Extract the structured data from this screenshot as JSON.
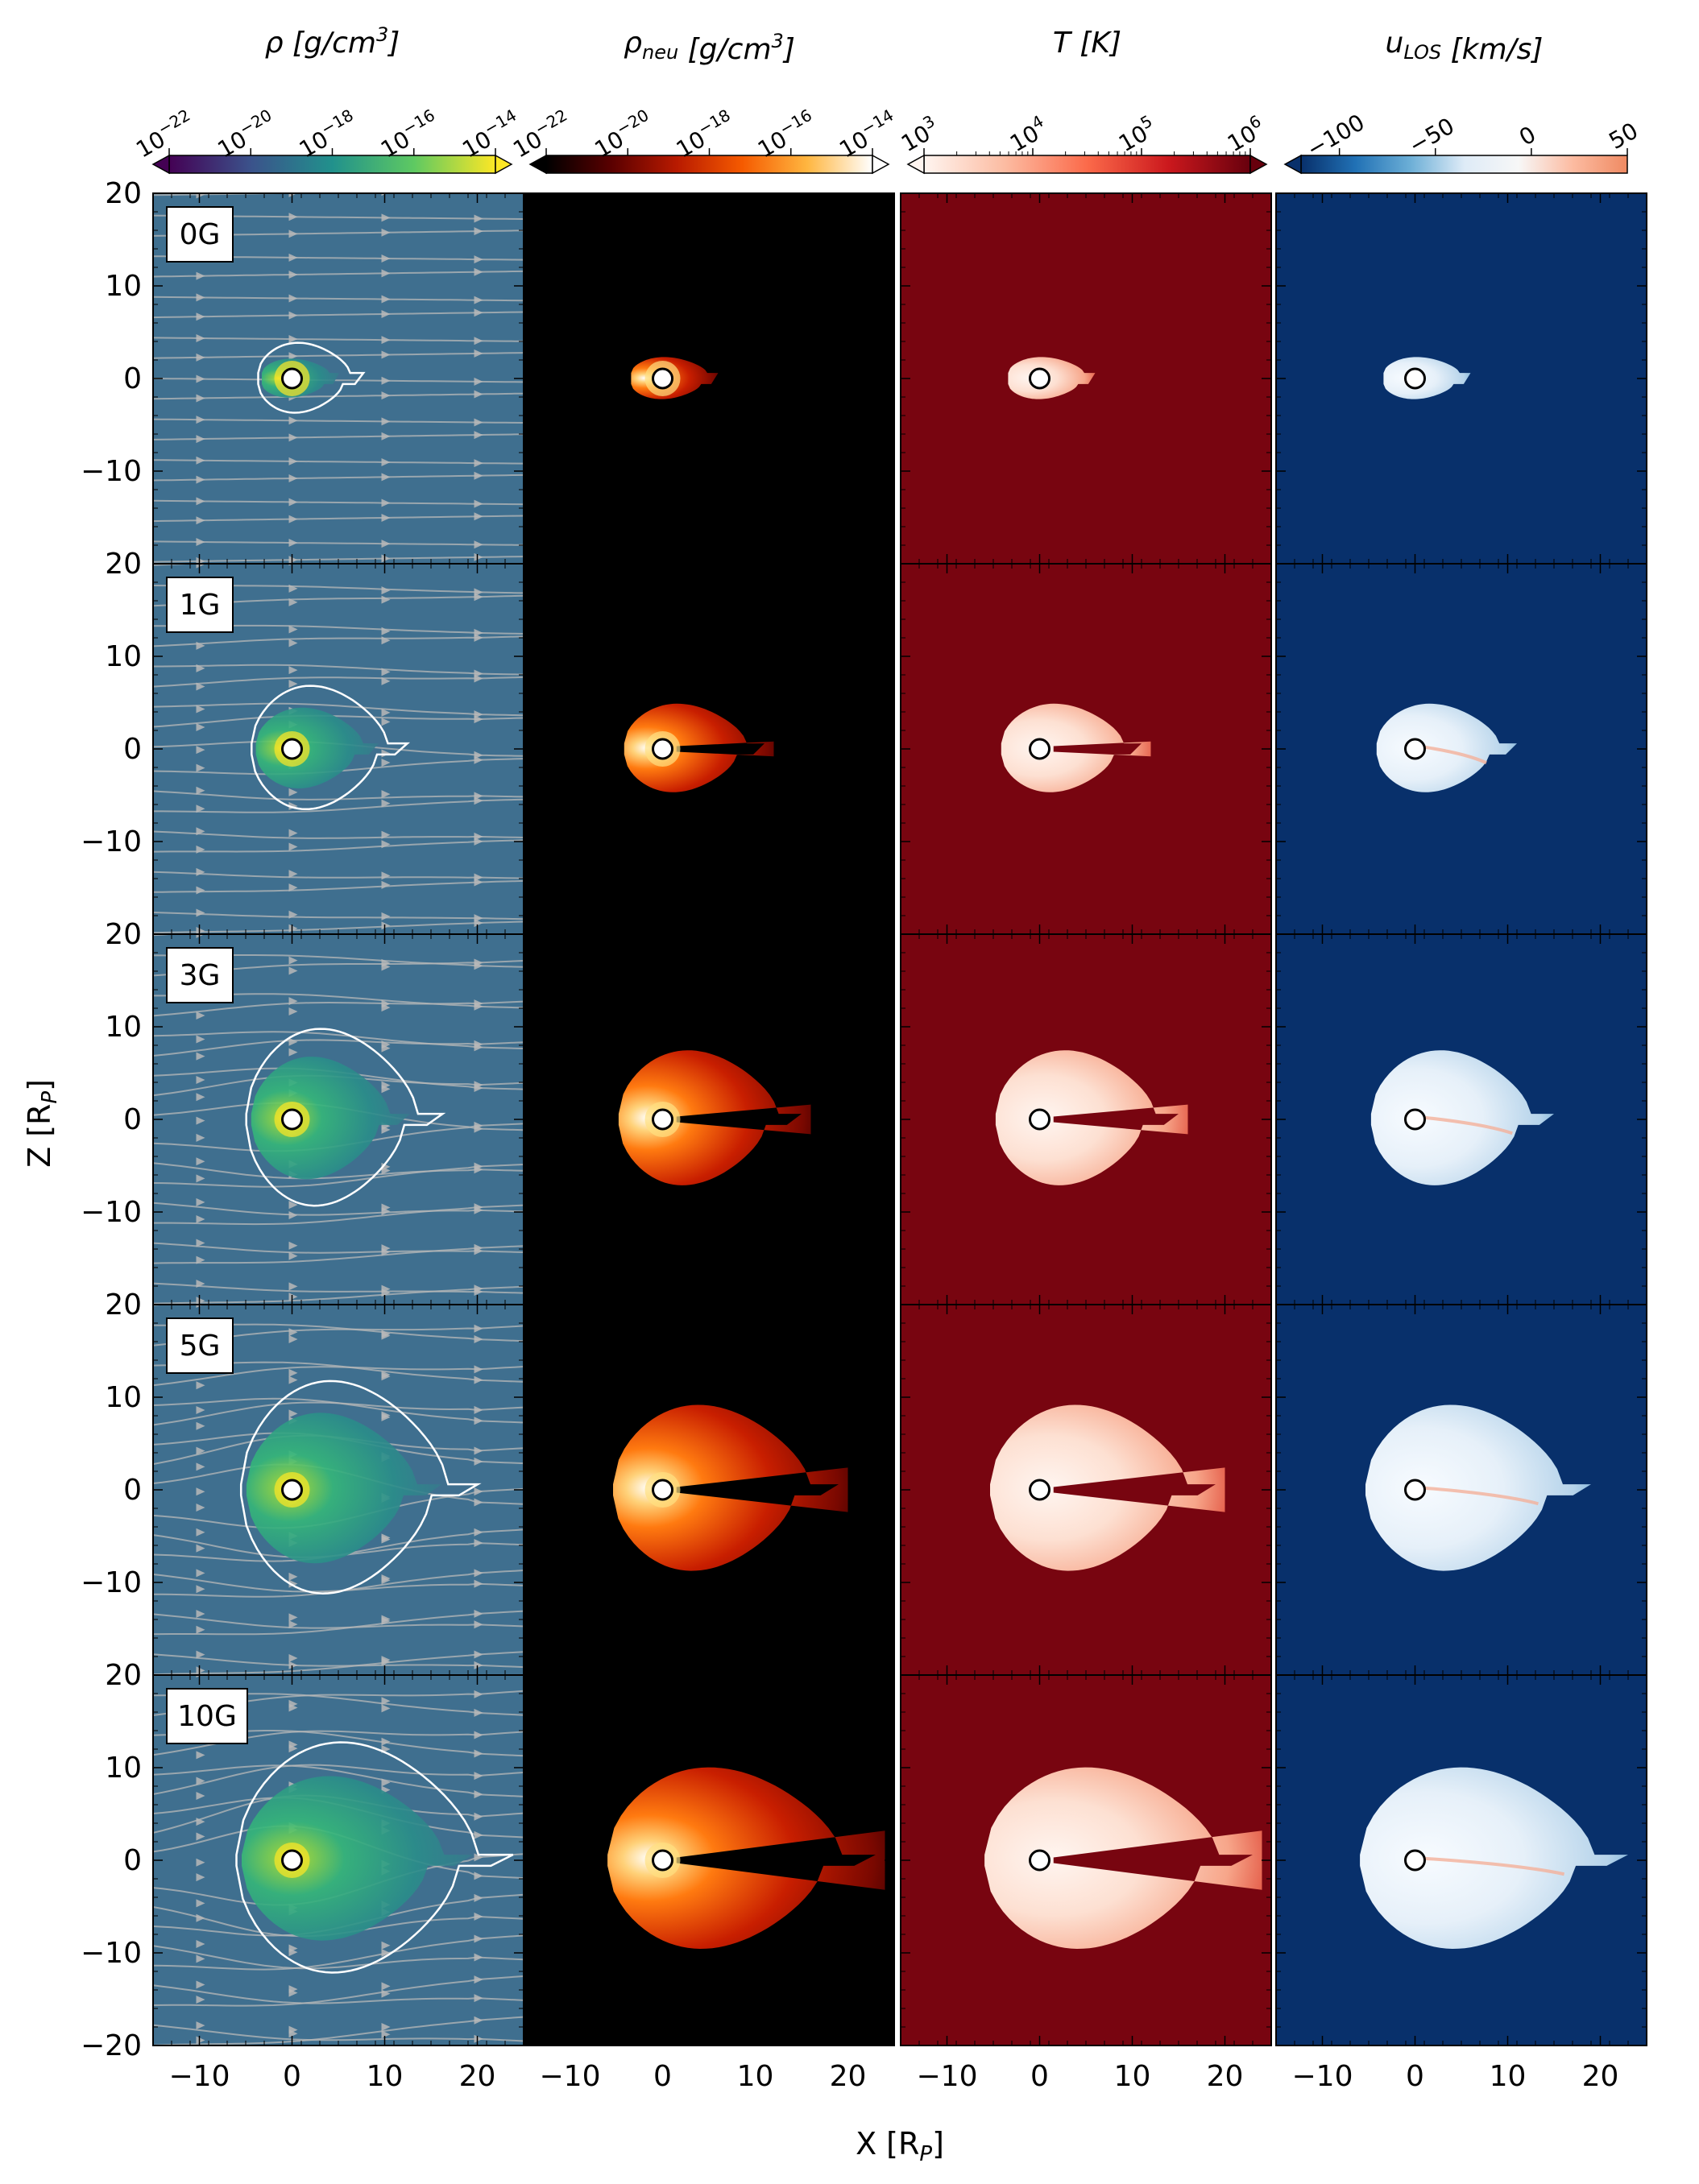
{
  "figure": {
    "xlabel": "X [R",
    "xlabel_sub": "P",
    "xlabel_close": "]",
    "ylabel": "Z [R",
    "ylabel_sub": "P",
    "ylabel_close": "]"
  },
  "colorbars": [
    {
      "name": "rho",
      "label_main": "ρ",
      "label_sub": "",
      "label_unit": " [g/cm",
      "label_sup": "3",
      "label_close": "]",
      "scale": "log",
      "tick_bases": [
        "10",
        "10",
        "10",
        "10",
        "10"
      ],
      "tick_exps": [
        "−22",
        "−20",
        "−18",
        "−16",
        "−14"
      ],
      "tick_values": [
        -22,
        -20,
        -18,
        -16,
        -14
      ],
      "range": [
        -22,
        -14
      ],
      "extend": "both",
      "cmap": [
        "#440154",
        "#3b528b",
        "#21918c",
        "#5ec962",
        "#fde725"
      ]
    },
    {
      "name": "rho_neu",
      "label_main": "ρ",
      "label_sub": "neu",
      "label_unit": " [g/cm",
      "label_sup": "3",
      "label_close": "]",
      "scale": "log",
      "tick_bases": [
        "10",
        "10",
        "10",
        "10",
        "10"
      ],
      "tick_exps": [
        "−22",
        "−20",
        "−18",
        "−16",
        "−14"
      ],
      "tick_values": [
        -22,
        -20,
        -18,
        -16,
        -14
      ],
      "range": [
        -22,
        -14
      ],
      "extend": "both",
      "cmap": [
        "#000000",
        "#5a0000",
        "#b81a00",
        "#f55a00",
        "#ffb640",
        "#ffffff"
      ]
    },
    {
      "name": "temperature",
      "label_main": "T",
      "label_sub": "",
      "label_unit": " [K",
      "label_sup": "",
      "label_close": "]",
      "scale": "log",
      "tick_bases": [
        "10",
        "10",
        "10",
        "10"
      ],
      "tick_exps": [
        "3",
        "4",
        "5",
        "6"
      ],
      "tick_values": [
        3,
        4,
        5,
        6
      ],
      "range": [
        3,
        6
      ],
      "extend": "both",
      "cmap": [
        "#fff5f0",
        "#fcbba1",
        "#fb6a4a",
        "#cb181d",
        "#67000d"
      ]
    },
    {
      "name": "u_los",
      "label_main": "u",
      "label_sub": "LOS",
      "label_unit": " [km/s",
      "label_sup": "",
      "label_close": "]",
      "scale": "linear",
      "tick_labels": [
        "−100",
        "−50",
        "0",
        "50"
      ],
      "tick_values": [
        -100,
        -50,
        0,
        50
      ],
      "range": [
        -120,
        50
      ],
      "extend": "min",
      "cmap": [
        "#08306b",
        "#2171b5",
        "#6baed6",
        "#deebf7",
        "#f7f7f7",
        "#fcbba1",
        "#ef8a62"
      ]
    }
  ],
  "panels": {
    "rows": [
      "0G",
      "1G",
      "3G",
      "5G",
      "10G"
    ],
    "x_ticks": [
      -10,
      0,
      10,
      20
    ],
    "x_tick_labels": [
      "−10",
      "0",
      "10",
      "20"
    ],
    "y_ticks": [
      20,
      10,
      0,
      -10
    ],
    "y_tick_labels": [
      "20",
      "10",
      "0",
      "−10"
    ],
    "y_bottom_label": "−20",
    "xlim": [
      -15,
      25
    ],
    "ylim": [
      -20,
      20
    ],
    "colors": {
      "rho_bg": "#3f6f8f",
      "rho_neu_bg": "#000000",
      "temp_bg": "#780510",
      "ulos_bg": "#08306b",
      "streamline": "#b8b8b8",
      "contour": "#ffffff"
    }
  },
  "chart_data": {
    "type": "heatmap",
    "description": "Five rows (magnetic field strength 0G, 1G, 3G, 5G, 10G) by four columns (total density, neutral density, temperature, line-of-sight velocity) of 2D simulation slices around a planet at (0,0).",
    "planet_center": [
      0,
      0
    ],
    "tail_extent_x": {
      "0G": 6,
      "1G": 11,
      "3G": 15,
      "5G": 19,
      "10G": 23
    },
    "tail_extent_z": {
      "0G": 2,
      "1G": 5,
      "3G": 8,
      "5G": 10,
      "10G": 11
    }
  }
}
